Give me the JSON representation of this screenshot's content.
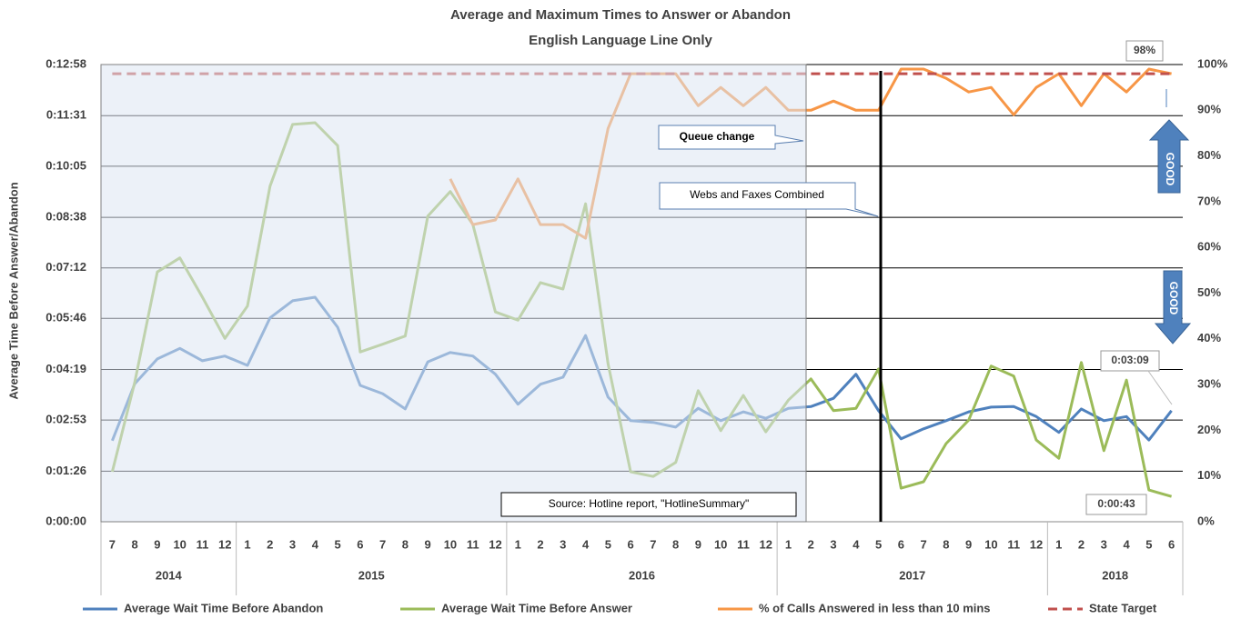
{
  "chart_data": {
    "type": "line",
    "title": "Average and Maximum Times to Answer or Abandon",
    "subtitle": "English Language Line Only",
    "y_label": "Average Time Before Answer/Abandon",
    "categories": [
      "7",
      "8",
      "9",
      "10",
      "11",
      "12",
      "1",
      "2",
      "3",
      "4",
      "5",
      "6",
      "7",
      "8",
      "9",
      "10",
      "11",
      "12",
      "1",
      "2",
      "3",
      "4",
      "5",
      "6",
      "7",
      "8",
      "9",
      "10",
      "11",
      "12",
      "1",
      "2",
      "3",
      "4",
      "5",
      "6",
      "7",
      "8",
      "9",
      "10",
      "11",
      "12",
      "1",
      "2",
      "3",
      "4",
      "5",
      "6"
    ],
    "year_groups": [
      {
        "label": "2014",
        "months": 6
      },
      {
        "label": "2015",
        "months": 12
      },
      {
        "label": "2016",
        "months": 12
      },
      {
        "label": "2017",
        "months": 12
      },
      {
        "label": "2018",
        "months": 6
      }
    ],
    "ylim": [
      0,
      778
    ],
    "yticks": [
      {
        "value": 0,
        "label": "0:00:00"
      },
      {
        "value": 86,
        "label": "0:01:26"
      },
      {
        "value": 173,
        "label": "0:02:53"
      },
      {
        "value": 259,
        "label": "0:04:19"
      },
      {
        "value": 346,
        "label": "0:05:46"
      },
      {
        "value": 432,
        "label": "0:07:12"
      },
      {
        "value": 518,
        "label": "0:08:38"
      },
      {
        "value": 605,
        "label": "0:10:05"
      },
      {
        "value": 691,
        "label": "0:11:31"
      },
      {
        "value": 778,
        "label": "0:12:58"
      }
    ],
    "y2lim": [
      0,
      100
    ],
    "y2ticks": [
      {
        "value": 0,
        "label": "0%"
      },
      {
        "value": 10,
        "label": "10%"
      },
      {
        "value": 20,
        "label": "20%"
      },
      {
        "value": 30,
        "label": "30%"
      },
      {
        "value": 40,
        "label": "40%"
      },
      {
        "value": 50,
        "label": "50%"
      },
      {
        "value": 60,
        "label": "60%"
      },
      {
        "value": 70,
        "label": "70%"
      },
      {
        "value": 80,
        "label": "80%"
      },
      {
        "value": 90,
        "label": "90%"
      },
      {
        "value": 100,
        "label": "100%"
      }
    ],
    "grid": true,
    "legend": "bottom",
    "series": [
      {
        "name": "Average Wait Time Before Abandon",
        "color": "#4f81bd",
        "values": [
          138,
          235,
          277,
          295,
          274,
          282,
          266,
          347,
          376,
          382,
          331,
          232,
          218,
          192,
          272,
          288,
          282,
          251,
          200,
          234,
          246,
          317,
          212,
          172,
          169,
          161,
          193,
          172,
          187,
          176,
          193,
          196,
          210,
          251,
          189,
          141,
          158,
          172,
          187,
          195,
          196,
          179,
          152,
          192,
          172,
          179,
          139,
          189
        ],
        "value_labels": [
          null,
          null,
          null,
          null,
          null,
          null,
          null,
          null,
          null,
          null,
          null,
          null,
          null,
          null,
          null,
          null,
          null,
          null,
          null,
          null,
          null,
          null,
          null,
          null,
          null,
          null,
          null,
          null,
          null,
          null,
          null,
          null,
          null,
          null,
          null,
          null,
          null,
          null,
          null,
          null,
          null,
          null,
          null,
          null,
          null,
          null,
          null,
          "0:03:09"
        ]
      },
      {
        "name": "Average Wait Time Before Answer",
        "color": "#9bbb59",
        "values": [
          85,
          238,
          425,
          449,
          382,
          312,
          367,
          571,
          676,
          679,
          640,
          289,
          302,
          316,
          520,
          562,
          506,
          357,
          343,
          407,
          396,
          541,
          269,
          85,
          77,
          101,
          223,
          155,
          215,
          153,
          207,
          243,
          189,
          193,
          260,
          57,
          68,
          133,
          173,
          265,
          248,
          139,
          108,
          271,
          121,
          241,
          54,
          43
        ],
        "value_labels": [
          null,
          null,
          null,
          null,
          null,
          null,
          null,
          null,
          null,
          null,
          null,
          null,
          null,
          null,
          null,
          null,
          null,
          null,
          null,
          null,
          null,
          null,
          null,
          null,
          null,
          null,
          null,
          null,
          null,
          null,
          null,
          null,
          null,
          null,
          null,
          null,
          null,
          null,
          null,
          null,
          null,
          null,
          null,
          null,
          null,
          null,
          null,
          "0:00:43"
        ]
      },
      {
        "name": "% of Calls Answered in less than 10 mins",
        "color": "#f79646",
        "axis": "y2",
        "values": [
          null,
          null,
          null,
          null,
          null,
          null,
          null,
          null,
          null,
          null,
          null,
          null,
          null,
          null,
          null,
          75,
          65,
          66,
          75,
          65,
          65,
          62,
          86,
          98,
          98,
          98,
          91,
          95,
          91,
          95,
          90,
          90,
          92,
          90,
          90,
          99,
          99,
          97,
          94,
          95,
          89,
          95,
          98,
          91,
          98,
          94,
          99,
          98
        ],
        "value_labels": [
          null,
          null,
          null,
          null,
          null,
          null,
          null,
          null,
          null,
          null,
          null,
          null,
          null,
          null,
          null,
          null,
          null,
          null,
          null,
          null,
          null,
          null,
          null,
          null,
          null,
          null,
          null,
          null,
          null,
          null,
          null,
          null,
          null,
          null,
          null,
          null,
          null,
          null,
          null,
          null,
          null,
          null,
          null,
          null,
          null,
          null,
          null,
          "98%"
        ]
      },
      {
        "name": "State Target",
        "color": "#c0504d",
        "axis": "y2",
        "dashed": true,
        "values": [
          98,
          98,
          98,
          98,
          98,
          98,
          98,
          98,
          98,
          98,
          98,
          98,
          98,
          98,
          98,
          98,
          98,
          98,
          98,
          98,
          98,
          98,
          98,
          98,
          98,
          98,
          98,
          98,
          98,
          98,
          98,
          98,
          98,
          98,
          98,
          98,
          98,
          98,
          98,
          98,
          98,
          98,
          98,
          98,
          98,
          98,
          98,
          98
        ]
      }
    ],
    "annotations": [
      "Queue change",
      "Webs and Faxes Combined",
      "Source: Hotline report, \"HotlineSummary\"",
      "GOOD",
      "GOOD"
    ]
  }
}
